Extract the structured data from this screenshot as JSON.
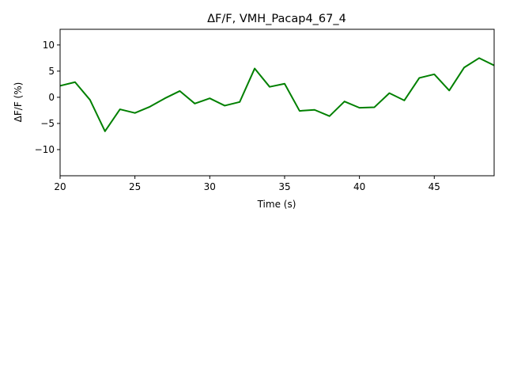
{
  "colors": {
    "line": "#008000",
    "axes": "#000000",
    "background": "#ffffff"
  },
  "chart_data": {
    "type": "line",
    "title": "ΔF/F, VMH_Pacap4_67_4",
    "xlabel": "Time (s)",
    "ylabel": "ΔF/F (%)",
    "xlim": [
      20,
      49
    ],
    "ylim": [
      -15,
      13
    ],
    "grid": false,
    "xticks": [
      20,
      25,
      30,
      35,
      40,
      45
    ],
    "xtick_labels": [
      "20",
      "25",
      "30",
      "35",
      "40",
      "45"
    ],
    "yticks": [
      10,
      5,
      0,
      -5,
      -10
    ],
    "ytick_labels": [
      "10",
      "5",
      "0",
      "−5",
      "−10"
    ],
    "series": [
      {
        "color": "#008000",
        "x": [
          20,
          21,
          22,
          23,
          24,
          25,
          26,
          27,
          28,
          29,
          30,
          31,
          32,
          33,
          34,
          35,
          36,
          37,
          38,
          39,
          40,
          41,
          42,
          43,
          44,
          45,
          46,
          47,
          48,
          49
        ],
        "y": [
          2.2,
          2.9,
          -0.5,
          -6.5,
          -2.3,
          -3.0,
          -1.8,
          -0.2,
          1.2,
          -1.2,
          -0.2,
          -1.6,
          -0.9,
          5.5,
          2.0,
          2.6,
          -2.6,
          -2.4,
          -3.6,
          -0.8,
          -2.0,
          -1.9,
          0.8,
          -0.6,
          3.7,
          4.4,
          1.3,
          5.7,
          7.5,
          6.1
        ]
      }
    ]
  }
}
